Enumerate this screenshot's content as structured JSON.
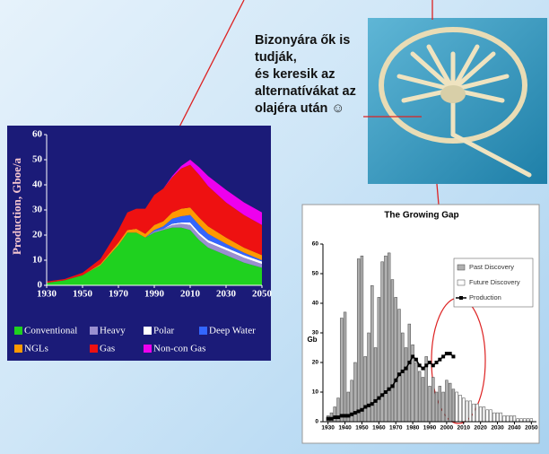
{
  "slide": {
    "text_lines": [
      "Bizonyára ők is tudják,",
      "és keresik az",
      "alternatívákat az",
      "olajéra után ☺"
    ]
  },
  "chart_data": [
    {
      "type": "area",
      "stacked": true,
      "y_label": "Production, Gboe/a",
      "x": [
        1930,
        1940,
        1950,
        1960,
        1970,
        1975,
        1980,
        1985,
        1990,
        1995,
        2000,
        2005,
        2010,
        2015,
        2020,
        2030,
        2040,
        2050
      ],
      "xlim": [
        1930,
        2050
      ],
      "xticks": [
        1930,
        1950,
        1970,
        1990,
        2010,
        2030,
        2050
      ],
      "ylim": [
        0,
        60
      ],
      "yticks": [
        0,
        10,
        20,
        30,
        40,
        50,
        60
      ],
      "series": [
        {
          "name": "Conventional",
          "color": "#1fd11f",
          "values": [
            1,
            2,
            4,
            8,
            16,
            21,
            21,
            19,
            21,
            22,
            23,
            23,
            22,
            18,
            15,
            12,
            9,
            7
          ]
        },
        {
          "name": "Heavy",
          "color": "#9a8fd0",
          "values": [
            0,
            0,
            0,
            0,
            0,
            0,
            0,
            0,
            0.5,
            0.5,
            1,
            1.5,
            2,
            2,
            2,
            2,
            2,
            1.5
          ]
        },
        {
          "name": "Polar",
          "color": "#ffffff",
          "values": [
            0,
            0,
            0,
            0,
            0,
            0,
            0,
            0,
            0,
            0,
            0.5,
            0.5,
            1,
            1,
            1,
            1,
            1,
            1
          ]
        },
        {
          "name": "Deep Water",
          "color": "#3366ff",
          "values": [
            0,
            0,
            0,
            0,
            0,
            0,
            0,
            0,
            0.5,
            1,
            2,
            2.5,
            3,
            3,
            2.5,
            1.5,
            1,
            0.5
          ]
        },
        {
          "name": "NGLs",
          "color": "#ff9900",
          "values": [
            0,
            0,
            0,
            0.5,
            1,
            1,
            1.5,
            1.5,
            2,
            2,
            2.5,
            3,
            3,
            3,
            3,
            2.5,
            2,
            2
          ]
        },
        {
          "name": "Gas",
          "color": "#ee1111",
          "values": [
            0.5,
            0.5,
            1,
            2,
            5,
            7,
            8,
            10,
            12,
            13,
            14,
            16,
            17,
            17,
            16,
            14,
            13,
            12
          ]
        },
        {
          "name": "Non-con Gas",
          "color": "#ee00ee",
          "values": [
            0,
            0,
            0,
            0,
            0,
            0,
            0,
            0,
            0,
            0,
            0.5,
            1,
            2,
            3,
            4,
            5,
            5,
            5
          ]
        }
      ]
    },
    {
      "type": "bar",
      "title": "The Growing Gap",
      "y_label": "Gb",
      "x": [
        1930,
        1932,
        1934,
        1936,
        1938,
        1940,
        1942,
        1944,
        1946,
        1948,
        1950,
        1952,
        1954,
        1956,
        1958,
        1960,
        1962,
        1964,
        1966,
        1968,
        1970,
        1972,
        1974,
        1976,
        1978,
        1980,
        1982,
        1984,
        1986,
        1988,
        1990,
        1992,
        1994,
        1996,
        1998,
        2000,
        2002,
        2004,
        2006,
        2008,
        2010,
        2012,
        2014,
        2016,
        2018,
        2020,
        2022,
        2024,
        2026,
        2028,
        2030,
        2032,
        2034,
        2036,
        2038,
        2040,
        2042,
        2044,
        2046,
        2048,
        2050
      ],
      "xlim": [
        1927,
        2053
      ],
      "xticks": [
        1930,
        1940,
        1950,
        1960,
        1970,
        1980,
        1990,
        2000,
        2010,
        2020,
        2030,
        2040,
        2050
      ],
      "ylim": [
        0,
        60
      ],
      "yticks": [
        0,
        10,
        20,
        30,
        40,
        50,
        60
      ],
      "series": [
        {
          "name": "Past Discovery",
          "kind": "bar",
          "color": "#b0b0b0",
          "values": [
            2,
            3,
            5,
            8,
            35,
            37,
            10,
            14,
            20,
            55,
            56,
            22,
            30,
            46,
            25,
            42,
            54,
            56,
            57,
            48,
            42,
            38,
            30,
            25,
            33,
            26,
            20,
            17,
            15,
            22,
            12,
            15,
            10,
            12,
            10,
            14,
            13,
            11,
            null,
            null,
            null,
            null,
            null,
            null,
            null,
            null,
            null,
            null,
            null,
            null,
            null,
            null,
            null,
            null,
            null,
            null,
            null,
            null,
            null,
            null,
            null
          ]
        },
        {
          "name": "Future Discovery",
          "kind": "bar",
          "color": "#ffffff",
          "values": [
            null,
            null,
            null,
            null,
            null,
            null,
            null,
            null,
            null,
            null,
            null,
            null,
            null,
            null,
            null,
            null,
            null,
            null,
            null,
            null,
            null,
            null,
            null,
            null,
            null,
            null,
            null,
            null,
            null,
            null,
            null,
            null,
            null,
            null,
            null,
            null,
            null,
            null,
            10,
            9,
            8,
            7,
            7,
            6,
            6,
            5,
            5,
            4,
            4,
            3,
            3,
            3,
            2,
            2,
            2,
            2,
            1,
            1,
            1,
            1,
            1
          ]
        },
        {
          "name": "Production",
          "kind": "line",
          "color": "#000000",
          "values": [
            1,
            1,
            1.5,
            1.5,
            2,
            2,
            2,
            2.5,
            3,
            3.5,
            4,
            5,
            5.5,
            6,
            7,
            8,
            9,
            10,
            11,
            12,
            14,
            16,
            17,
            18,
            20,
            22,
            21,
            19,
            18,
            19,
            20,
            19,
            20,
            21,
            22,
            23,
            23,
            22,
            null,
            null,
            null,
            null,
            null,
            null,
            null,
            null,
            null,
            null,
            null,
            null,
            null,
            null,
            null,
            null,
            null,
            null,
            null,
            null,
            null,
            null,
            null
          ]
        }
      ]
    }
  ]
}
